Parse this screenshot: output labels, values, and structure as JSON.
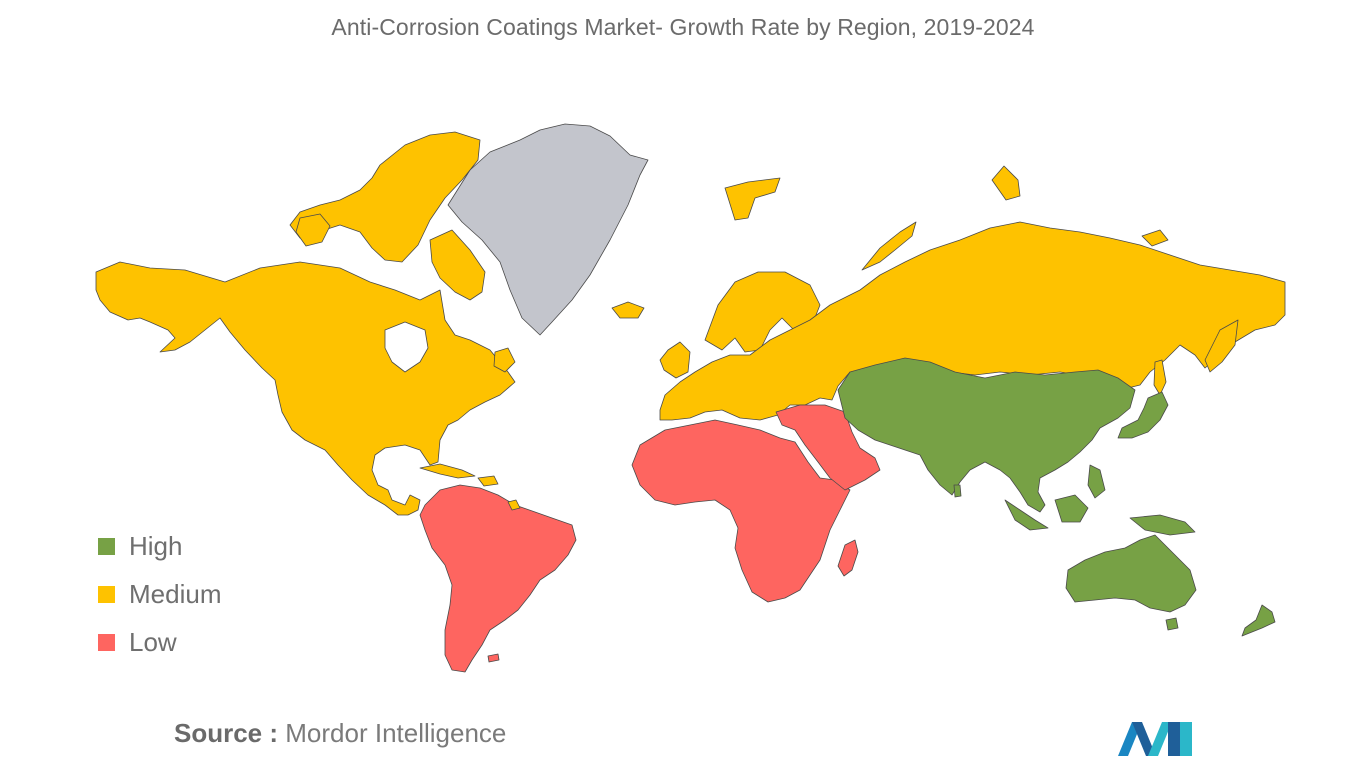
{
  "title": "Anti-Corrosion Coatings Market- Growth Rate by Region, 2019-2024",
  "legend": [
    {
      "label": "High",
      "color": "#77a145"
    },
    {
      "label": "Medium",
      "color": "#fec200"
    },
    {
      "label": "Low",
      "color": "#fe6560"
    }
  ],
  "no_data_color": "#c3c5cc",
  "border_color": "#4a4a4a",
  "source": {
    "label": "Source :",
    "value": "Mordor Intelligence"
  },
  "logo_icon": "mordor-intelligence-logo",
  "regions": [
    {
      "name": "North America",
      "level": "Medium"
    },
    {
      "name": "Europe and Russia",
      "level": "Medium"
    },
    {
      "name": "Asia-Pacific",
      "level": "High"
    },
    {
      "name": "South America",
      "level": "Low"
    },
    {
      "name": "Middle East and Africa",
      "level": "Low"
    }
  ]
}
